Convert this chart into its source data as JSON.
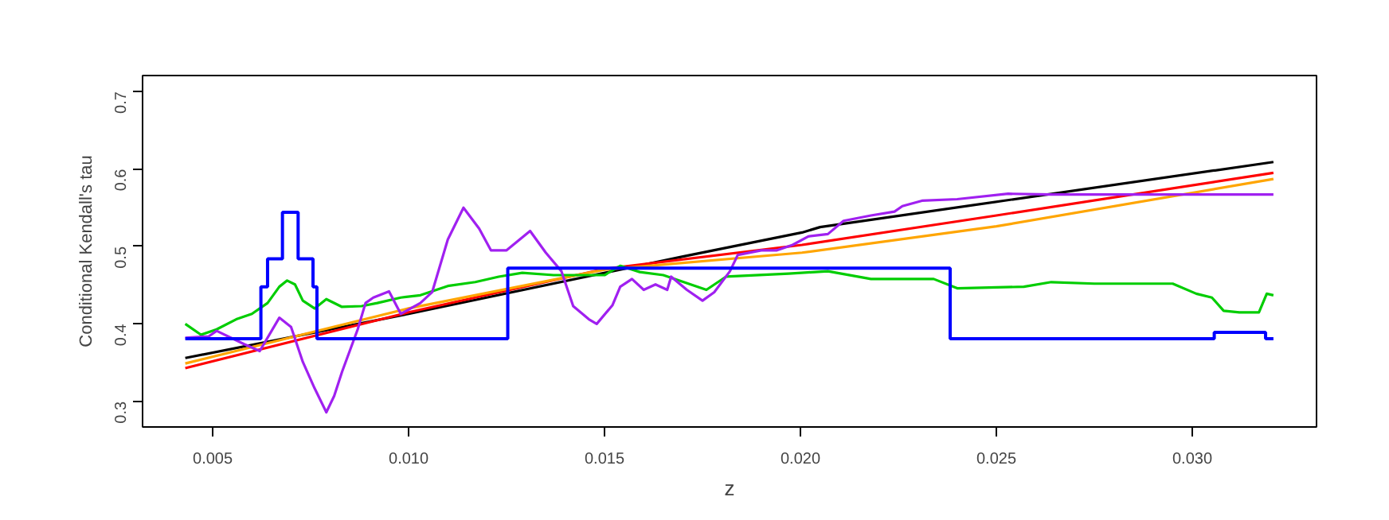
{
  "chart_data": {
    "type": "line",
    "xlabel": "z",
    "ylabel": "Conditional Kendall's tau",
    "xlim": [
      0.00321,
      0.03317
    ],
    "ylim": [
      0.267,
      0.7206
    ],
    "xticks": [
      {
        "value": 0.005,
        "label": "0.005"
      },
      {
        "value": 0.01,
        "label": "0.010"
      },
      {
        "value": 0.015,
        "label": "0.015"
      },
      {
        "value": 0.02,
        "label": "0.020"
      },
      {
        "value": 0.025,
        "label": "0.025"
      },
      {
        "value": 0.03,
        "label": "0.030"
      }
    ],
    "yticks": [
      0.3,
      0.4,
      0.5,
      0.6,
      0.7
    ],
    "grid": false,
    "marker": "none",
    "line_style": "solid",
    "series": [
      {
        "color": "#000000",
        "x": [
          0.0043,
          0.01,
          0.017,
          0.02004,
          0.0205,
          0.03207
        ],
        "values": [
          0.356,
          0.413,
          0.487,
          0.518,
          0.525,
          0.609
        ]
      },
      {
        "color": "#ff0000",
        "x": [
          0.0043,
          0.01,
          0.015,
          0.02004,
          0.025,
          0.03207
        ],
        "values": [
          0.343,
          0.415,
          0.471,
          0.502,
          0.54,
          0.595
        ]
      },
      {
        "color": "#ffa500",
        "x": [
          0.0043,
          0.01,
          0.015,
          0.02004,
          0.025,
          0.03207
        ],
        "values": [
          0.349,
          0.42,
          0.47,
          0.492,
          0.526,
          0.587
        ]
      },
      {
        "color": "#00cd00",
        "x": [
          0.0043,
          0.0047,
          0.0051,
          0.0056,
          0.006,
          0.0064,
          0.0067,
          0.0069,
          0.0071,
          0.0073,
          0.0076,
          0.0079,
          0.0083,
          0.0088,
          0.0092,
          0.0098,
          0.0103,
          0.011,
          0.0117,
          0.0123,
          0.0129,
          0.0137,
          0.015,
          0.0154,
          0.0159,
          0.0165,
          0.0176,
          0.0181,
          0.0197,
          0.0207,
          0.0218,
          0.0234,
          0.024,
          0.0257,
          0.0264,
          0.0275,
          0.0295,
          0.0301,
          0.0305,
          0.0308,
          0.0312,
          0.0317,
          0.0319,
          0.03207
        ],
        "values": [
          0.4,
          0.386,
          0.393,
          0.406,
          0.413,
          0.427,
          0.448,
          0.456,
          0.451,
          0.43,
          0.42,
          0.432,
          0.422,
          0.423,
          0.427,
          0.434,
          0.437,
          0.449,
          0.454,
          0.461,
          0.466,
          0.463,
          0.463,
          0.475,
          0.467,
          0.463,
          0.444,
          0.461,
          0.465,
          0.468,
          0.458,
          0.458,
          0.446,
          0.448,
          0.454,
          0.452,
          0.452,
          0.439,
          0.434,
          0.417,
          0.415,
          0.415,
          0.439,
          0.437
        ]
      },
      {
        "color": "#a020f0",
        "x": [
          0.0043,
          0.0049,
          0.0051,
          0.0058,
          0.0062,
          0.0067,
          0.007,
          0.0073,
          0.0076,
          0.0079,
          0.0081,
          0.0083,
          0.0087,
          0.0089,
          0.0091,
          0.0095,
          0.0098,
          0.0103,
          0.0106,
          0.011,
          0.0114,
          0.0118,
          0.0121,
          0.0125,
          0.0131,
          0.0135,
          0.0139,
          0.0142,
          0.0146,
          0.0148,
          0.0152,
          0.0154,
          0.0157,
          0.016,
          0.0163,
          0.0166,
          0.0167,
          0.0171,
          0.0175,
          0.0178,
          0.0182,
          0.0184,
          0.019,
          0.0194,
          0.0198,
          0.0202,
          0.0207,
          0.0211,
          0.0218,
          0.0224,
          0.0226,
          0.0231,
          0.024,
          0.0253,
          0.0264,
          0.03207
        ],
        "values": [
          0.382,
          0.384,
          0.391,
          0.374,
          0.365,
          0.408,
          0.396,
          0.351,
          0.317,
          0.286,
          0.307,
          0.338,
          0.393,
          0.427,
          0.434,
          0.442,
          0.413,
          0.427,
          0.441,
          0.509,
          0.55,
          0.523,
          0.495,
          0.495,
          0.52,
          0.492,
          0.468,
          0.423,
          0.406,
          0.4,
          0.424,
          0.448,
          0.458,
          0.444,
          0.451,
          0.444,
          0.461,
          0.444,
          0.43,
          0.441,
          0.468,
          0.489,
          0.495,
          0.495,
          0.502,
          0.513,
          0.516,
          0.533,
          0.54,
          0.545,
          0.552,
          0.559,
          0.561,
          0.568,
          0.567,
          0.567
        ]
      },
      {
        "type": "step",
        "color": "#0000ff",
        "x": [
          0.0043,
          0.00623,
          0.0064,
          0.00678,
          0.00718,
          0.00756,
          0.00766,
          0.01253,
          0.02382,
          0.03056,
          0.03187,
          0.03207
        ],
        "values": [
          0.381,
          0.448,
          0.484,
          0.544,
          0.484,
          0.448,
          0.381,
          0.472,
          0.381,
          0.389,
          0.381,
          0.381
        ]
      }
    ]
  }
}
